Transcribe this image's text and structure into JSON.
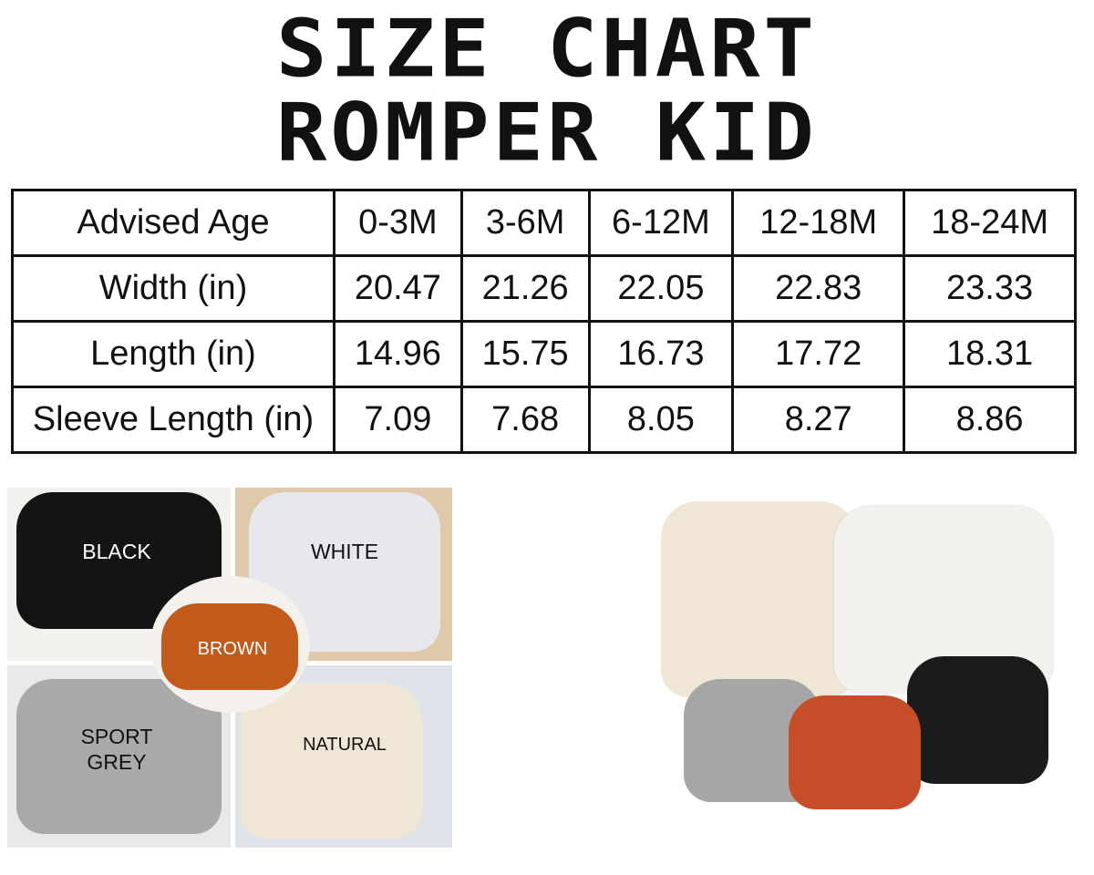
{
  "title": {
    "line1": "SIZE CHART",
    "line2": "ROMPER KID"
  },
  "size_table": {
    "header": [
      "Advised Age",
      "0-3M",
      "3-6M",
      "6-12M",
      "12-18M",
      "18-24M"
    ],
    "rows": [
      [
        "Width (in)",
        "20.47",
        "21.26",
        "22.05",
        "22.83",
        "23.33"
      ],
      [
        "Length (in)",
        "14.96",
        "15.75",
        "16.73",
        "17.72",
        "18.31"
      ],
      [
        "Sleeve Length (in)",
        "7.09",
        "7.68",
        "8.05",
        "8.27",
        "8.86"
      ]
    ]
  },
  "color_labels": {
    "black": "BLACK",
    "white": "WHITE",
    "brown": "BROWN",
    "sport_grey_1": "SPORT",
    "sport_grey_2": "GREY",
    "natural": "NATURAL"
  },
  "colors": {
    "black": "#141414",
    "white": "#e6e8ee",
    "brown": "#c25a1c",
    "grey": "#a9a9a9",
    "natural": "#efe6d6"
  }
}
